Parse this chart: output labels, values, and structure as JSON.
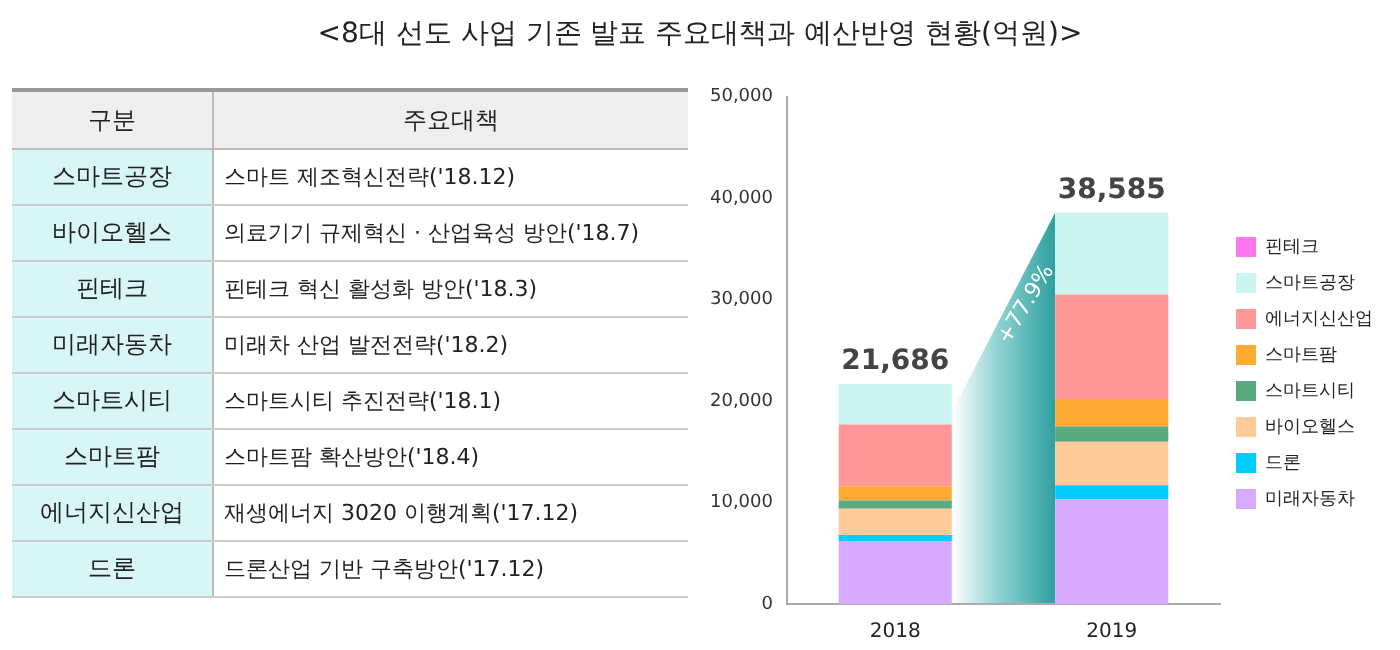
{
  "chart_data": [
    {
      "type": "other",
      "title": "<8대 선도 사업 기존 발표 주요대책과 예산반영 현황(억원)>",
      "categories": [
        "구분",
        "주요대책"
      ],
      "y_categories": [
        "스마트공장",
        "바이오헬스",
        "핀테크",
        "미래자동차",
        "스마트시티",
        "스마트팜",
        "에너지신산업",
        "드론"
      ],
      "cell_labels": [
        [
          "스마트 제조혁신전략('18.12)"
        ],
        [
          "의료기기 규제혁신 · 산업육성 방안('18.7)"
        ],
        [
          "핀테크 혁신 활성화 방안('18.3)"
        ],
        [
          "미래차 산업 발전전략('18.2)"
        ],
        [
          "스마트시티 추진전략('18.1)"
        ],
        [
          "스마트팜 확산방안('18.4)"
        ],
        [
          "재생에너지 3020 이행계획('17.12)"
        ],
        [
          "드론산업 기반 구축방안('17.12)"
        ]
      ]
    },
    {
      "type": "bar",
      "stacked": true,
      "categories": [
        "2018",
        "2019"
      ],
      "series": [
        {
          "name": "미래자동차",
          "color": "#d5aaff",
          "values": [
            6200,
            10300
          ]
        },
        {
          "name": "드론",
          "color": "#00ccff",
          "values": [
            600,
            1400
          ]
        },
        {
          "name": "바이오헬스",
          "color": "#ffcc99",
          "values": [
            2600,
            4300
          ]
        },
        {
          "name": "스마트시티",
          "color": "#5aaa80",
          "values": [
            800,
            1500
          ]
        },
        {
          "name": "스마트팜",
          "color": "#ffaa33",
          "values": [
            1400,
            2700
          ]
        },
        {
          "name": "에너지신산업",
          "color": "#ff9999",
          "values": [
            6100,
            10300
          ]
        },
        {
          "name": "스마트공장",
          "color": "#ccf5f2",
          "values": [
            3986,
            8085
          ]
        },
        {
          "name": "핀테크",
          "color": "#ff77ee",
          "values": [
            0,
            0
          ]
        }
      ],
      "totals": [
        "21,686",
        "38,585"
      ],
      "annotations": [
        "+77.9%"
      ],
      "ylim": [
        0,
        50000
      ],
      "yticks": [
        {
          "value": 0,
          "label": "0"
        },
        {
          "value": 10000,
          "label": "10,000"
        },
        {
          "value": 20000,
          "label": "20,000"
        },
        {
          "value": 30000,
          "label": "30,000"
        },
        {
          "value": 40000,
          "label": "40,000"
        },
        {
          "value": 50000,
          "label": "50,000"
        }
      ],
      "grid": false,
      "legend": "right"
    }
  ]
}
